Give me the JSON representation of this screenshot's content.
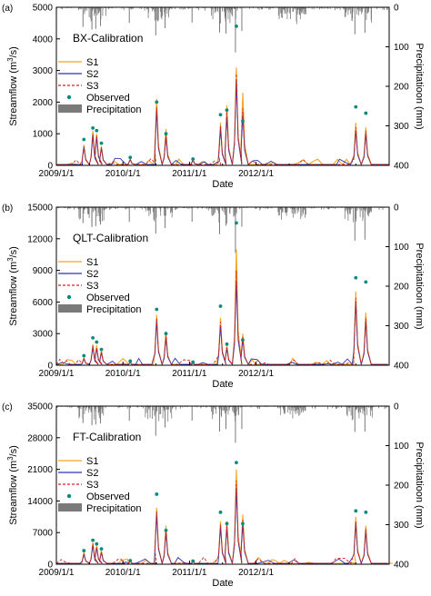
{
  "chart_data": [
    {
      "type": "line",
      "panel": "(a)",
      "title": "BX-Calibration",
      "xlabel": "Date",
      "ylabel_html": [
        "Streamflow (m",
        "3",
        "/s)"
      ],
      "y2label": "Precipitatioon (mm)",
      "x_ticks": [
        "2009/1/1",
        "2010/1/1",
        "2011/1/1",
        "2012/1/1"
      ],
      "x_range": [
        "2009/1/1",
        "2013/12/31"
      ],
      "ylim": [
        0,
        5000
      ],
      "y_ticks": [
        0,
        1000,
        2000,
        3000,
        4000,
        5000
      ],
      "y2lim": [
        0,
        400
      ],
      "y2_ticks": [
        0,
        100,
        200,
        300,
        400
      ],
      "y2_inverted": true,
      "legend": [
        "S1",
        "S2",
        "S3",
        "Observed",
        "Precipitation"
      ],
      "series_colors": {
        "S1": "#f2a51f",
        "S2": "#2a35b0",
        "S3": "#d62020",
        "Observed": "#0e8a7a",
        "Precipitation": "#7a7a7a"
      },
      "peaks": [
        {
          "date": "2009-06-01",
          "observed": 820,
          "S1": 650,
          "S2": 560,
          "S3": 600
        },
        {
          "date": "2009-07-20",
          "observed": 1180,
          "S1": 1100,
          "S2": 950,
          "S3": 1000
        },
        {
          "date": "2009-08-10",
          "observed": 1100,
          "S1": 1000,
          "S2": 900,
          "S3": 950
        },
        {
          "date": "2009-09-05",
          "observed": 700,
          "S1": 600,
          "S2": 550,
          "S3": 580
        },
        {
          "date": "2010-02-10",
          "observed": 250,
          "S1": 200,
          "S2": 180,
          "S3": 190
        },
        {
          "date": "2010-07-05",
          "observed": 2000,
          "S1": 2100,
          "S2": 1750,
          "S3": 1850
        },
        {
          "date": "2010-08-25",
          "observed": 1000,
          "S1": 1150,
          "S2": 900,
          "S3": 950
        },
        {
          "date": "2011-01-20",
          "observed": 200,
          "S1": 180,
          "S2": 160,
          "S3": 170
        },
        {
          "date": "2011-06-20",
          "observed": 1600,
          "S1": 1350,
          "S2": 1150,
          "S3": 1250
        },
        {
          "date": "2011-07-25",
          "observed": 1750,
          "S1": 1900,
          "S2": 1550,
          "S3": 1700
        },
        {
          "date": "2011-09-15",
          "observed": 4400,
          "S1": 3100,
          "S2": 2700,
          "S3": 2900
        },
        {
          "date": "2011-10-20",
          "observed": 1400,
          "S1": 2300,
          "S2": 1600,
          "S3": 1800
        },
        {
          "date": "2013-07-01",
          "observed": 1850,
          "S1": 1350,
          "S2": 1100,
          "S3": 1200
        },
        {
          "date": "2013-08-25",
          "observed": 1650,
          "S1": 1200,
          "S2": 1000,
          "S3": 1100
        }
      ]
    },
    {
      "type": "line",
      "panel": "(b)",
      "title": "QLT-Calibration",
      "xlabel": "Date",
      "ylabel_html": [
        "Streamflow (m",
        "3",
        "/s)"
      ],
      "y2label": "Precipitatioon (mm)",
      "x_ticks": [
        "2009/1/1",
        "2010/1/1",
        "2011/1/1",
        "2012/1/1"
      ],
      "x_range": [
        "2009/1/1",
        "2013/12/31"
      ],
      "ylim": [
        0,
        15000
      ],
      "y_ticks": [
        0,
        3000,
        6000,
        9000,
        12000,
        15000
      ],
      "y2lim": [
        0,
        400
      ],
      "y2_ticks": [
        0,
        100,
        200,
        300,
        400
      ],
      "y2_inverted": true,
      "legend": [
        "S1",
        "S2",
        "S3",
        "Observed",
        "Precipitation"
      ],
      "series_colors": {
        "S1": "#f2a51f",
        "S2": "#2a35b0",
        "S3": "#d62020",
        "Observed": "#0e8a7a",
        "Precipitation": "#7a7a7a"
      },
      "peaks": [
        {
          "date": "2009-06-01",
          "observed": 900,
          "S1": 700,
          "S2": 600,
          "S3": 650
        },
        {
          "date": "2009-07-20",
          "observed": 2600,
          "S1": 2000,
          "S2": 1700,
          "S3": 1850
        },
        {
          "date": "2009-08-10",
          "observed": 2200,
          "S1": 1900,
          "S2": 1600,
          "S3": 1700
        },
        {
          "date": "2009-09-05",
          "observed": 1500,
          "S1": 1400,
          "S2": 1200,
          "S3": 1300
        },
        {
          "date": "2010-02-10",
          "observed": 400,
          "S1": 300,
          "S2": 250,
          "S3": 280
        },
        {
          "date": "2010-07-05",
          "observed": 5300,
          "S1": 4800,
          "S2": 4200,
          "S3": 4500
        },
        {
          "date": "2010-08-25",
          "observed": 3000,
          "S1": 3200,
          "S2": 2600,
          "S3": 2800
        },
        {
          "date": "2011-01-20",
          "observed": 300,
          "S1": 250,
          "S2": 200,
          "S3": 220
        },
        {
          "date": "2011-06-20",
          "observed": 5600,
          "S1": 4500,
          "S2": 3800,
          "S3": 4100
        },
        {
          "date": "2011-07-25",
          "observed": 2000,
          "S1": 1900,
          "S2": 1600,
          "S3": 1750
        },
        {
          "date": "2011-09-15",
          "observed": 13500,
          "S1": 11000,
          "S2": 8000,
          "S3": 9000
        },
        {
          "date": "2011-10-20",
          "observed": 2400,
          "S1": 3000,
          "S2": 2500,
          "S3": 2700
        },
        {
          "date": "2013-07-01",
          "observed": 8300,
          "S1": 7000,
          "S2": 6000,
          "S3": 6400
        },
        {
          "date": "2013-08-25",
          "observed": 7900,
          "S1": 5000,
          "S2": 4200,
          "S3": 4500
        }
      ]
    },
    {
      "type": "line",
      "panel": "(c)",
      "title": "FT-Calibration",
      "xlabel": "Date",
      "ylabel_html": [
        "Streamflow (m",
        "3",
        "/s)"
      ],
      "y2label": "Precipitatioon (mm)",
      "x_ticks": [
        "2009/1/1",
        "2010/1/1",
        "2011/1/1",
        "2012/1/1"
      ],
      "x_range": [
        "2009/1/1",
        "2013/12/31"
      ],
      "ylim": [
        0,
        35000
      ],
      "y_ticks": [
        0,
        7000,
        14000,
        21000,
        28000,
        35000
      ],
      "y2lim": [
        0,
        400
      ],
      "y2_ticks": [
        0,
        100,
        200,
        300,
        400
      ],
      "y2_inverted": true,
      "legend": [
        "S1",
        "S2",
        "S3",
        "Observed",
        "Precipitation"
      ],
      "series_colors": {
        "S1": "#f2a51f",
        "S2": "#2a35b0",
        "S3": "#d62020",
        "Observed": "#0e8a7a",
        "Precipitation": "#7a7a7a"
      },
      "peaks": [
        {
          "date": "2009-06-01",
          "observed": 3000,
          "S1": 2600,
          "S2": 2200,
          "S3": 2400
        },
        {
          "date": "2009-07-20",
          "observed": 5300,
          "S1": 4800,
          "S2": 4200,
          "S3": 4500
        },
        {
          "date": "2009-08-10",
          "observed": 4500,
          "S1": 4200,
          "S2": 3700,
          "S3": 3900
        },
        {
          "date": "2009-09-05",
          "observed": 3400,
          "S1": 3000,
          "S2": 2600,
          "S3": 2800
        },
        {
          "date": "2010-02-10",
          "observed": 800,
          "S1": 700,
          "S2": 600,
          "S3": 650
        },
        {
          "date": "2010-07-05",
          "observed": 15500,
          "S1": 12500,
          "S2": 11000,
          "S3": 11800
        },
        {
          "date": "2010-08-25",
          "observed": 7500,
          "S1": 8500,
          "S2": 7000,
          "S3": 7600
        },
        {
          "date": "2011-01-20",
          "observed": 700,
          "S1": 600,
          "S2": 500,
          "S3": 550
        },
        {
          "date": "2011-06-20",
          "observed": 11500,
          "S1": 9500,
          "S2": 8200,
          "S3": 8800
        },
        {
          "date": "2011-07-25",
          "observed": 9000,
          "S1": 9500,
          "S2": 8000,
          "S3": 8600
        },
        {
          "date": "2011-09-15",
          "observed": 22500,
          "S1": 21000,
          "S2": 17000,
          "S3": 18500
        },
        {
          "date": "2011-10-20",
          "observed": 9000,
          "S1": 11000,
          "S2": 9000,
          "S3": 9800
        },
        {
          "date": "2013-07-01",
          "observed": 11800,
          "S1": 10500,
          "S2": 9000,
          "S3": 9600
        },
        {
          "date": "2013-08-25",
          "observed": 11500,
          "S1": 8500,
          "S2": 7300,
          "S3": 7900
        }
      ]
    }
  ]
}
